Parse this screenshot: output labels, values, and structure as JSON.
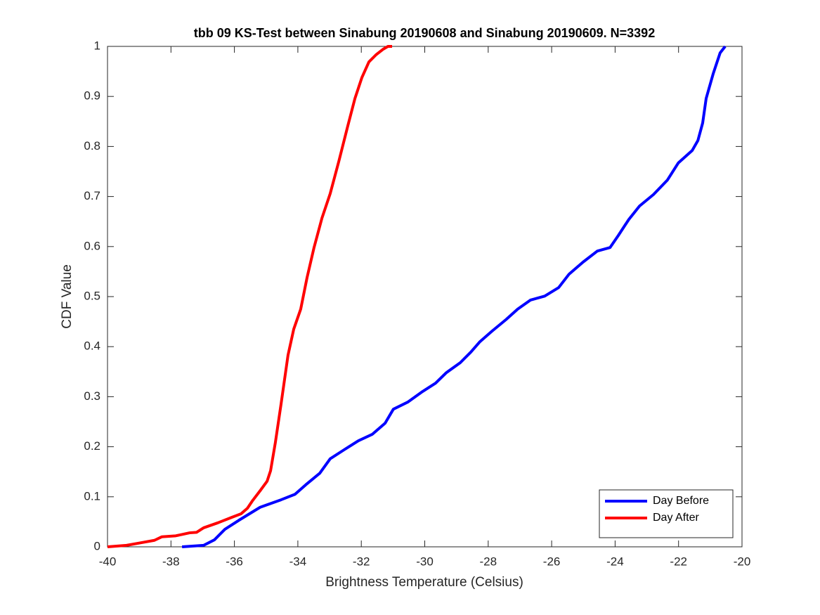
{
  "chart_data": {
    "type": "line",
    "title": "tbb 09 KS-Test between Sinabung 20190608 and Sinabung 20190609. N=3392",
    "x_label": "Brightness Temperature (Celsius)",
    "y_label": "CDF Value",
    "xlim": [
      -40,
      -20
    ],
    "xticks": [
      -40,
      -38,
      -36,
      -34,
      -32,
      -30,
      -28,
      -26,
      -24,
      -22,
      -20
    ],
    "ylim": [
      0,
      1
    ],
    "yticks": [
      0,
      0.1,
      0.2,
      0.3,
      0.4,
      0.5,
      0.6,
      0.7,
      0.8,
      0.9,
      1
    ],
    "legend": "lower right",
    "grid": false,
    "series": [
      {
        "name": "Day Before",
        "color": "#0000ff",
        "x": [
          -37.65,
          -36.97,
          -36.63,
          -36.3,
          -35.86,
          -35.19,
          -34.53,
          -34.09,
          -33.75,
          -33.31,
          -32.98,
          -32.54,
          -32.09,
          -31.65,
          -31.25,
          -30.99,
          -30.54,
          -30.1,
          -29.66,
          -29.32,
          -28.88,
          -28.55,
          -28.26,
          -27.88,
          -27.44,
          -27.07,
          -26.67,
          -26.22,
          -25.78,
          -25.45,
          -25.01,
          -24.56,
          -24.16,
          -23.9,
          -23.57,
          -23.23,
          -22.79,
          -22.35,
          -22.01,
          -21.57,
          -21.39,
          -21.24,
          -21.13,
          -20.91,
          -20.69,
          -20.53
        ],
        "values": [
          0,
          0.003,
          0.014,
          0.035,
          0.053,
          0.079,
          0.094,
          0.105,
          0.124,
          0.147,
          0.176,
          0.194,
          0.212,
          0.225,
          0.247,
          0.275,
          0.289,
          0.309,
          0.327,
          0.348,
          0.368,
          0.389,
          0.41,
          0.431,
          0.454,
          0.475,
          0.493,
          0.501,
          0.518,
          0.545,
          0.569,
          0.591,
          0.598,
          0.622,
          0.654,
          0.681,
          0.704,
          0.733,
          0.767,
          0.792,
          0.812,
          0.847,
          0.896,
          0.945,
          0.987,
          1
        ]
      },
      {
        "name": "Day After",
        "color": "#ff0000",
        "x": [
          -40,
          -39.4,
          -38.96,
          -38.52,
          -38.29,
          -37.85,
          -37.41,
          -37.19,
          -36.97,
          -36.52,
          -36.08,
          -35.79,
          -35.59,
          -35.42,
          -35.19,
          -34.97,
          -34.86,
          -34.71,
          -34.53,
          -34.31,
          -34.13,
          -33.91,
          -33.71,
          -33.49,
          -33.24,
          -32.98,
          -32.71,
          -32.43,
          -32.2,
          -31.98,
          -31.76,
          -31.54,
          -31.32,
          -31.16,
          -31.03
        ],
        "values": [
          0,
          0.003,
          0.008,
          0.013,
          0.02,
          0.022,
          0.028,
          0.029,
          0.038,
          0.048,
          0.059,
          0.066,
          0.077,
          0.093,
          0.112,
          0.131,
          0.152,
          0.208,
          0.285,
          0.383,
          0.435,
          0.475,
          0.538,
          0.598,
          0.657,
          0.706,
          0.77,
          0.84,
          0.896,
          0.938,
          0.969,
          0.983,
          0.994,
          1,
          1
        ]
      }
    ]
  }
}
